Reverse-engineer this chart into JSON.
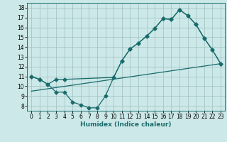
{
  "xlabel": "Humidex (Indice chaleur)",
  "bg_color": "#cce8e8",
  "line_color": "#1a6b6b",
  "grid_color": "#9fbfbf",
  "xlim": [
    -0.5,
    23.5
  ],
  "ylim": [
    7.5,
    18.5
  ],
  "xticks": [
    0,
    1,
    2,
    3,
    4,
    5,
    6,
    7,
    8,
    9,
    10,
    11,
    12,
    13,
    14,
    15,
    16,
    17,
    18,
    19,
    20,
    21,
    22,
    23
  ],
  "yticks": [
    8,
    9,
    10,
    11,
    12,
    13,
    14,
    15,
    16,
    17,
    18
  ],
  "line1_x": [
    0,
    1,
    2,
    3,
    4,
    10,
    11,
    12,
    13,
    14,
    15,
    16,
    17,
    18,
    19,
    20,
    21,
    22,
    23
  ],
  "line1_y": [
    11,
    10.7,
    10.2,
    10.7,
    10.7,
    10.9,
    12.6,
    13.8,
    14.4,
    15.1,
    15.9,
    16.9,
    16.8,
    17.8,
    17.2,
    16.3,
    14.9,
    13.7,
    12.3
  ],
  "line2_x": [
    0,
    1,
    2,
    3,
    4,
    5,
    6,
    7,
    8,
    9,
    10,
    11,
    12,
    13,
    14,
    15,
    16,
    17,
    18,
    19,
    20,
    21,
    22,
    23
  ],
  "line2_y": [
    11,
    10.7,
    10.2,
    9.4,
    9.4,
    8.4,
    8.1,
    7.8,
    7.8,
    9.0,
    10.9,
    12.6,
    13.8,
    14.4,
    15.1,
    15.9,
    16.9,
    16.8,
    17.8,
    17.2,
    16.3,
    14.9,
    13.7,
    12.3
  ],
  "line3_x": [
    0,
    23
  ],
  "line3_y": [
    9.5,
    12.3
  ],
  "tick_fontsize": 5.5,
  "xlabel_fontsize": 6.5
}
